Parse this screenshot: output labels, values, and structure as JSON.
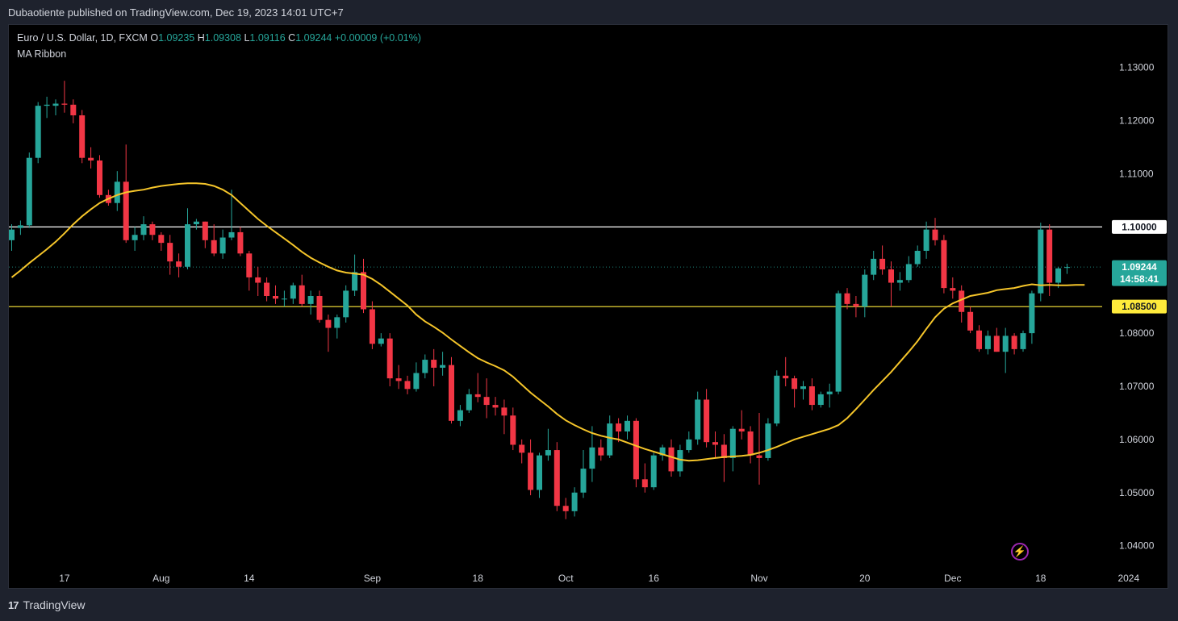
{
  "header": {
    "publisher_line": "Dubaotiente published on TradingView.com, Dec 19, 2023 14:01 UTC+7"
  },
  "legend": {
    "symbol": "Euro / U.S. Dollar, 1D, FXCM",
    "o_label": "O",
    "o": "1.09235",
    "h_label": "H",
    "h": "1.09308",
    "l_label": "L",
    "l": "1.09116",
    "c_label": "C",
    "c": "1.09244",
    "change": "+0.00009 (+0.01%)",
    "indicator": "MA Ribbon"
  },
  "footer": {
    "brand": "TradingView",
    "logo_mark": "17"
  },
  "colors": {
    "up": "#26a69a",
    "down": "#f23645",
    "ma": "#f5c52a",
    "level_white": "#ffffff",
    "level_yellow": "#ffeb3b",
    "bolt": "#9c27b0"
  },
  "chart_data": {
    "type": "candlestick",
    "symbol": "EUR/USD",
    "timeframe": "1D",
    "ylim": [
      1.036,
      1.138
    ],
    "y_ticks": [
      "1.13000",
      "1.12000",
      "1.11000",
      "1.10000",
      "1.09244",
      "1.08500",
      "1.08000",
      "1.07000",
      "1.06000",
      "1.05000",
      "1.04000"
    ],
    "y_tick_values": [
      1.13,
      1.12,
      1.11,
      1.1,
      1.09244,
      1.085,
      1.08,
      1.07,
      1.06,
      1.05,
      1.04
    ],
    "x_ticks": [
      {
        "label": "17",
        "index": 6
      },
      {
        "label": "Aug",
        "index": 17
      },
      {
        "label": "14",
        "index": 27
      },
      {
        "label": "Sep",
        "index": 41
      },
      {
        "label": "18",
        "index": 53
      },
      {
        "label": "Oct",
        "index": 63
      },
      {
        "label": "16",
        "index": 73
      },
      {
        "label": "Nov",
        "index": 85
      },
      {
        "label": "20",
        "index": 97
      },
      {
        "label": "Dec",
        "index": 107
      },
      {
        "label": "18",
        "index": 117
      },
      {
        "label": "2024",
        "index": 127
      }
    ],
    "levels": [
      {
        "value": 1.1,
        "label": "1.10000",
        "color": "#ffffff"
      },
      {
        "value": 1.085,
        "label": "1.08500",
        "color": "#ffeb3b"
      }
    ],
    "last_price": {
      "value": 1.09244,
      "label": "1.09244",
      "countdown": "14:58:41"
    },
    "ohlc": [
      [
        1.0975,
        1.1005,
        1.0955,
        1.0995
      ],
      [
        1.0998,
        1.1012,
        1.0985,
        1.1003
      ],
      [
        1.1003,
        1.114,
        1.0998,
        1.113
      ],
      [
        1.113,
        1.1235,
        1.112,
        1.1228
      ],
      [
        1.1228,
        1.1245,
        1.1205,
        1.123
      ],
      [
        1.1228,
        1.124,
        1.121,
        1.1232
      ],
      [
        1.1232,
        1.1275,
        1.1215,
        1.123
      ],
      [
        1.123,
        1.124,
        1.1195,
        1.121
      ],
      [
        1.121,
        1.122,
        1.112,
        1.113
      ],
      [
        1.113,
        1.115,
        1.111,
        1.1125
      ],
      [
        1.1125,
        1.1135,
        1.1055,
        1.106
      ],
      [
        1.106,
        1.107,
        1.104,
        1.1045
      ],
      [
        1.1045,
        1.1105,
        1.103,
        1.1085
      ],
      [
        1.1085,
        1.1155,
        1.097,
        1.0975
      ],
      [
        1.0975,
        1.1,
        1.0955,
        1.0985
      ],
      [
        1.0985,
        1.102,
        1.0975,
        1.1005
      ],
      [
        1.1005,
        1.101,
        1.0975,
        1.0985
      ],
      [
        1.0985,
        1.099,
        1.0955,
        1.097
      ],
      [
        1.097,
        1.0985,
        1.091,
        1.0935
      ],
      [
        1.0935,
        1.095,
        1.0905,
        1.0925
      ],
      [
        1.0925,
        1.1035,
        1.092,
        1.1005
      ],
      [
        1.1005,
        1.1015,
        1.0995,
        1.101
      ],
      [
        1.101,
        1.101,
        1.096,
        1.0975
      ],
      [
        1.0975,
        1.1005,
        1.0945,
        1.095
      ],
      [
        1.095,
        1.0995,
        1.094,
        1.098
      ],
      [
        1.098,
        1.107,
        1.0975,
        1.099
      ],
      [
        1.099,
        1.1,
        1.0945,
        1.095
      ],
      [
        1.095,
        1.0955,
        1.088,
        1.0905
      ],
      [
        1.0905,
        1.0925,
        1.087,
        1.0895
      ],
      [
        1.0895,
        1.0905,
        1.086,
        1.087
      ],
      [
        1.087,
        1.089,
        1.0855,
        1.0865
      ],
      [
        1.0865,
        1.088,
        1.085,
        1.0865
      ],
      [
        1.0865,
        1.0895,
        1.0855,
        1.089
      ],
      [
        1.089,
        1.091,
        1.085,
        1.0855
      ],
      [
        1.0855,
        1.088,
        1.0835,
        1.087
      ],
      [
        1.087,
        1.088,
        1.082,
        1.0825
      ],
      [
        1.0825,
        1.0835,
        1.0765,
        1.081
      ],
      [
        1.081,
        1.0835,
        1.079,
        1.083
      ],
      [
        1.083,
        1.089,
        1.082,
        1.088
      ],
      [
        1.088,
        1.0948,
        1.087,
        1.0915
      ],
      [
        1.0915,
        1.094,
        1.0838,
        1.0845
      ],
      [
        1.0845,
        1.086,
        1.077,
        1.078
      ],
      [
        1.078,
        1.08,
        1.0775,
        1.079
      ],
      [
        1.079,
        1.08,
        1.07,
        1.0715
      ],
      [
        1.0715,
        1.074,
        1.0695,
        1.071
      ],
      [
        1.071,
        1.072,
        1.0685,
        1.0695
      ],
      [
        1.0695,
        1.0745,
        1.069,
        1.0725
      ],
      [
        1.0725,
        1.076,
        1.0715,
        1.075
      ],
      [
        1.075,
        1.077,
        1.07,
        1.0735
      ],
      [
        1.0735,
        1.0765,
        1.072,
        1.074
      ],
      [
        1.074,
        1.0755,
        1.063,
        1.0635
      ],
      [
        1.0635,
        1.0665,
        1.0625,
        1.0655
      ],
      [
        1.0655,
        1.0695,
        1.065,
        1.0685
      ],
      [
        1.0685,
        1.0725,
        1.067,
        1.068
      ],
      [
        1.068,
        1.0715,
        1.064,
        1.0665
      ],
      [
        1.0665,
        1.068,
        1.0645,
        1.066
      ],
      [
        1.066,
        1.0675,
        1.061,
        1.0645
      ],
      [
        1.0645,
        1.066,
        1.058,
        1.059
      ],
      [
        1.059,
        1.06,
        1.0555,
        1.0575
      ],
      [
        1.0575,
        1.06,
        1.0495,
        1.0505
      ],
      [
        1.0505,
        1.0575,
        1.049,
        1.057
      ],
      [
        1.057,
        1.062,
        1.056,
        1.058
      ],
      [
        1.058,
        1.0595,
        1.0465,
        1.0475
      ],
      [
        1.0475,
        1.049,
        1.045,
        1.0465
      ],
      [
        1.0465,
        1.051,
        1.0455,
        1.05
      ],
      [
        1.05,
        1.058,
        1.049,
        1.0545
      ],
      [
        1.0545,
        1.0625,
        1.052,
        1.0585
      ],
      [
        1.0585,
        1.06,
        1.056,
        1.057
      ],
      [
        1.057,
        1.0645,
        1.0565,
        1.063
      ],
      [
        1.063,
        1.064,
        1.0595,
        1.0615
      ],
      [
        1.0615,
        1.0645,
        1.06,
        1.0635
      ],
      [
        1.0635,
        1.064,
        1.051,
        1.0525
      ],
      [
        1.0525,
        1.0555,
        1.05,
        1.051
      ],
      [
        1.051,
        1.0575,
        1.0505,
        1.057
      ],
      [
        1.057,
        1.059,
        1.056,
        1.0585
      ],
      [
        1.0585,
        1.06,
        1.053,
        1.054
      ],
      [
        1.054,
        1.059,
        1.053,
        1.058
      ],
      [
        1.058,
        1.0615,
        1.0575,
        1.06
      ],
      [
        1.06,
        1.069,
        1.059,
        1.0675
      ],
      [
        1.0675,
        1.0695,
        1.0585,
        1.0595
      ],
      [
        1.0595,
        1.0615,
        1.0565,
        1.059
      ],
      [
        1.059,
        1.061,
        1.052,
        1.0565
      ],
      [
        1.0565,
        1.0625,
        1.054,
        1.062
      ],
      [
        1.062,
        1.0655,
        1.06,
        1.0615
      ],
      [
        1.0615,
        1.0625,
        1.0555,
        1.057
      ],
      [
        1.057,
        1.065,
        1.0515,
        1.0565
      ],
      [
        1.0565,
        1.064,
        1.056,
        1.063
      ],
      [
        1.063,
        1.073,
        1.0625,
        1.072
      ],
      [
        1.072,
        1.0755,
        1.07,
        1.0715
      ],
      [
        1.0715,
        1.072,
        1.066,
        1.0695
      ],
      [
        1.0695,
        1.071,
        1.0675,
        1.07
      ],
      [
        1.07,
        1.0715,
        1.0655,
        1.0665
      ],
      [
        1.0665,
        1.069,
        1.066,
        1.0685
      ],
      [
        1.0685,
        1.0705,
        1.066,
        1.069
      ],
      [
        1.069,
        1.088,
        1.0685,
        1.0875
      ],
      [
        1.0875,
        1.0885,
        1.0845,
        1.0855
      ],
      [
        1.0855,
        1.087,
        1.083,
        1.085
      ],
      [
        1.085,
        1.092,
        1.083,
        1.091
      ],
      [
        1.091,
        1.0955,
        1.09,
        1.094
      ],
      [
        1.094,
        1.0965,
        1.091,
        1.092
      ],
      [
        1.092,
        1.0935,
        1.085,
        1.0895
      ],
      [
        1.0895,
        1.0915,
        1.088,
        1.09
      ],
      [
        1.09,
        1.0945,
        1.0895,
        1.093
      ],
      [
        1.093,
        1.0965,
        1.0925,
        1.0955
      ],
      [
        1.0955,
        1.101,
        1.094,
        1.0995
      ],
      [
        1.0995,
        1.1017,
        1.0965,
        1.0975
      ],
      [
        1.0975,
        1.0985,
        1.0875,
        1.0885
      ],
      [
        1.0885,
        1.0905,
        1.0865,
        1.088
      ],
      [
        1.088,
        1.089,
        1.082,
        1.084
      ],
      [
        1.084,
        1.085,
        1.08,
        1.0805
      ],
      [
        1.0805,
        1.0815,
        1.0765,
        1.077
      ],
      [
        1.077,
        1.0805,
        1.076,
        1.0795
      ],
      [
        1.0795,
        1.081,
        1.0765,
        1.0765
      ],
      [
        1.0765,
        1.081,
        1.0725,
        1.0795
      ],
      [
        1.0795,
        1.08,
        1.076,
        1.077
      ],
      [
        1.077,
        1.0805,
        1.0765,
        1.08
      ],
      [
        1.08,
        1.088,
        1.078,
        1.0875
      ],
      [
        1.0875,
        1.1008,
        1.086,
        1.0995
      ],
      [
        1.0995,
        1.1005,
        1.087,
        1.0895
      ],
      [
        1.0895,
        1.0925,
        1.0885,
        1.0922
      ],
      [
        1.09235,
        1.09308,
        1.09116,
        1.09244
      ]
    ],
    "series": [
      {
        "name": "MA Ribbon",
        "color": "#f5c52a",
        "values": [
          1.0905,
          1.0918,
          1.0932,
          1.0945,
          1.0958,
          1.0972,
          1.0988,
          1.1005,
          1.102,
          1.1033,
          1.1045,
          1.1053,
          1.106,
          1.1065,
          1.1068,
          1.107,
          1.1074,
          1.1077,
          1.1079,
          1.1081,
          1.1082,
          1.1082,
          1.1081,
          1.1077,
          1.107,
          1.106,
          1.1045,
          1.103,
          1.1015,
          1.1002,
          1.099,
          1.0978,
          1.0966,
          1.0953,
          1.0942,
          1.0933,
          1.0925,
          1.0918,
          1.0914,
          1.0912,
          1.091,
          1.0902,
          1.0891,
          1.0878,
          1.0865,
          1.0852,
          1.0835,
          1.0822,
          1.0812,
          1.0801,
          1.0788,
          1.0776,
          1.0764,
          1.0753,
          1.0745,
          1.0738,
          1.073,
          1.0718,
          1.0703,
          1.0688,
          1.0675,
          1.0662,
          1.0648,
          1.0636,
          1.0627,
          1.0619,
          1.0612,
          1.0607,
          1.0603,
          1.06,
          1.0594,
          1.0588,
          1.0582,
          1.0577,
          1.0572,
          1.0567,
          1.0562,
          1.056,
          1.0561,
          1.0563,
          1.0565,
          1.0567,
          1.0568,
          1.0569,
          1.0571,
          1.0575,
          1.058,
          1.0586,
          1.0593,
          1.06,
          1.0605,
          1.061,
          1.0615,
          1.062,
          1.0627,
          1.064,
          1.0657,
          1.0675,
          1.0693,
          1.071,
          1.0727,
          1.0746,
          1.0765,
          1.0785,
          1.0808,
          1.083,
          1.0846,
          1.0856,
          1.0863,
          1.087,
          1.0873,
          1.0876,
          1.0881,
          1.0883,
          1.0885,
          1.0889,
          1.0892,
          1.089,
          1.0891,
          1.089,
          1.089,
          1.0891,
          1.0891
        ]
      }
    ]
  }
}
